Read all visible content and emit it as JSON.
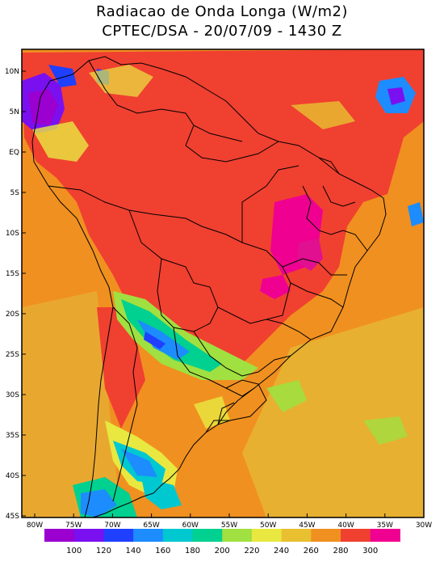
{
  "title": {
    "line1": "Radiacao de Onda Longa (W/m2)",
    "line2": "CPTEC/DSA - 20/07/09 - 1430 Z"
  },
  "axes": {
    "lat_labels": [
      "10N",
      "5N",
      "EQ",
      "5S",
      "10S",
      "15S",
      "20S",
      "25S",
      "30S",
      "35S",
      "40S",
      "45S"
    ],
    "lon_labels": [
      "80W",
      "75W",
      "70W",
      "65W",
      "60W",
      "55W",
      "50W",
      "45W",
      "40W",
      "35W",
      "30W"
    ]
  },
  "colorbar": {
    "colors": [
      "#9b00d0",
      "#7a10f0",
      "#2040ff",
      "#1c8cff",
      "#00c8d0",
      "#00d090",
      "#a0e040",
      "#e8e840",
      "#e8c030",
      "#f09020",
      "#f04030",
      "#f00090"
    ],
    "labels": [
      "100",
      "120",
      "140",
      "160",
      "180",
      "200",
      "220",
      "240",
      "260",
      "280",
      "300"
    ]
  }
}
